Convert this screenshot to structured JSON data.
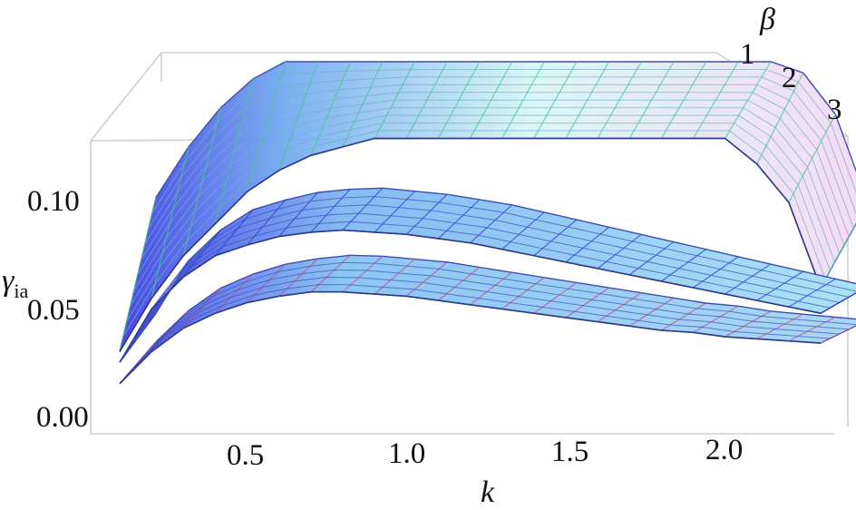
{
  "chart_data": {
    "type": "surface3d",
    "x_label": "k",
    "y_label": "β",
    "z_label": "γ",
    "z_label_subscript": "ia",
    "x_ticks": [
      "0.5",
      "1.0",
      "1.5",
      "2.0"
    ],
    "y_ticks": [
      "1",
      "2",
      "3"
    ],
    "z_ticks": [
      "0.00",
      "0.05",
      "0.10"
    ],
    "xlim": [
      0.1,
      2.3
    ],
    "zlim": [
      0.0,
      0.13
    ],
    "k_samples": [
      0.1,
      0.2,
      0.3,
      0.4,
      0.5,
      0.6,
      0.7,
      0.8,
      0.9,
      1.0,
      1.1,
      1.2,
      1.3,
      1.4,
      1.5,
      1.6,
      1.7,
      1.8,
      1.9,
      2.0,
      2.1,
      2.2,
      2.3
    ],
    "series": [
      {
        "name": "β = 1",
        "front_edge": [
          0.03,
          0.055,
          0.075,
          0.09,
          0.105,
          0.115,
          0.122,
          0.126,
          0.13,
          0.13,
          0.13,
          0.13,
          0.13,
          0.13,
          0.13,
          0.13,
          0.13,
          0.13,
          0.13,
          0.13,
          0.118,
          0.1,
          0.06
        ],
        "colors": {
          "start": "#3b38e8",
          "mid": "#5fd8e6",
          "end": "#b8f3f0",
          "mesh": "#43c98a"
        }
      },
      {
        "name": "β = 2",
        "front_edge": [
          0.025,
          0.05,
          0.065,
          0.075,
          0.08,
          0.084,
          0.086,
          0.087,
          0.086,
          0.085,
          0.083,
          0.081,
          0.078,
          0.075,
          0.072,
          0.069,
          0.066,
          0.063,
          0.06,
          0.057,
          0.054,
          0.051,
          0.048
        ],
        "colors": {
          "start": "#3a3ae6",
          "mid": "#7fc8f0",
          "end": "#a9e4f6",
          "mesh": "#2e3fd4"
        }
      },
      {
        "name": "β = 3",
        "front_edge": [
          0.015,
          0.03,
          0.041,
          0.048,
          0.053,
          0.056,
          0.058,
          0.058,
          0.057,
          0.056,
          0.054,
          0.052,
          0.05,
          0.048,
          0.046,
          0.044,
          0.042,
          0.04,
          0.039,
          0.037,
          0.036,
          0.035,
          0.034
        ],
        "colors": {
          "start": "#4646e4",
          "mid": "#86c8f2",
          "end": "#a6d8f4",
          "mesh": "#c2508a"
        }
      }
    ]
  }
}
